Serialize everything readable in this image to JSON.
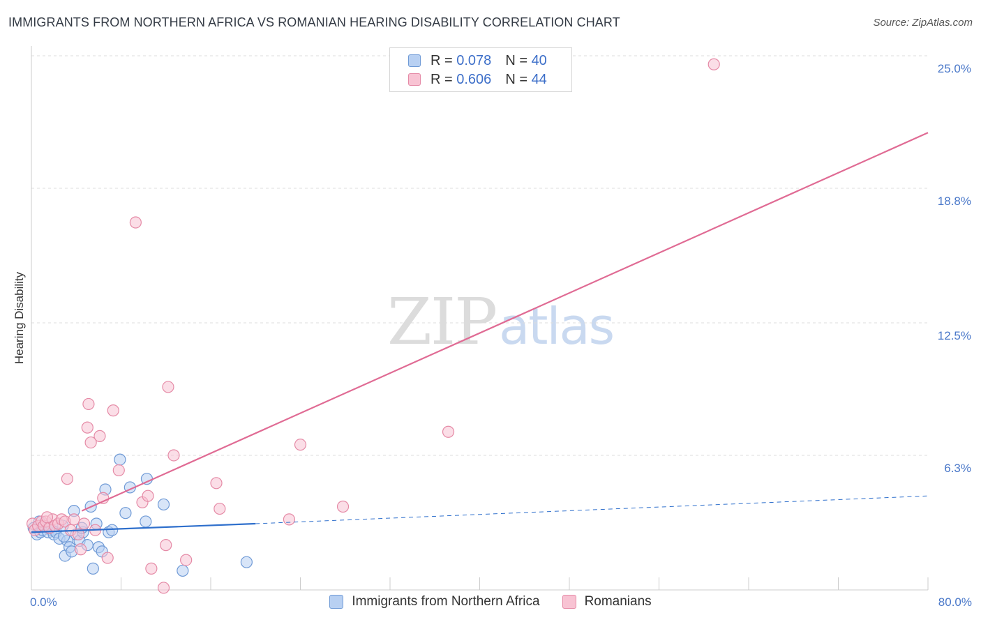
{
  "title": "IMMIGRANTS FROM NORTHERN AFRICA VS ROMANIAN HEARING DISABILITY CORRELATION CHART",
  "source": "Source: ZipAtlas.com",
  "watermark": {
    "zip": "ZIP",
    "atlas": "atlas"
  },
  "legend_top": [
    {
      "r_label": "R =",
      "r": "0.078",
      "n_label": "N =",
      "n": "40"
    },
    {
      "r_label": "R =",
      "r": "0.606",
      "n_label": "N =",
      "n": "44"
    }
  ],
  "legend_bottom": [
    "Immigrants from Northern Africa",
    "Romanians"
  ],
  "colors": {
    "blue_fill": "#b8d0f2",
    "blue_stroke": "#6f9ad6",
    "blue_line": "#2e6fcc",
    "pink_fill": "#f8c3d3",
    "pink_stroke": "#e58aa6",
    "pink_line": "#e06b94",
    "axis_text": "#4a78c9",
    "grid": "#dddddd"
  },
  "chart_data": {
    "type": "scatter",
    "xlabel": "",
    "ylabel": "Hearing Disability",
    "xlim": [
      0,
      80
    ],
    "ylim": [
      0,
      25
    ],
    "x_tick_labels": [
      {
        "value": 0,
        "label": "0.0%"
      },
      {
        "value": 80,
        "label": "80.0%"
      }
    ],
    "y_tick_labels": [
      {
        "value": 6.3,
        "label": "6.3%"
      },
      {
        "value": 12.5,
        "label": "12.5%"
      },
      {
        "value": 18.8,
        "label": "18.8%"
      },
      {
        "value": 25.0,
        "label": "25.0%"
      }
    ],
    "series": [
      {
        "name": "Immigrants from Northern Africa",
        "color": "blue",
        "points": [
          [
            0.2,
            2.9
          ],
          [
            0.5,
            2.6
          ],
          [
            0.8,
            2.7
          ],
          [
            1.0,
            2.8
          ],
          [
            1.2,
            3.0
          ],
          [
            1.5,
            2.7
          ],
          [
            1.8,
            2.8
          ],
          [
            2.0,
            2.6
          ],
          [
            2.2,
            2.7
          ],
          [
            2.5,
            2.4
          ],
          [
            2.8,
            3.0
          ],
          [
            3.0,
            1.6
          ],
          [
            3.2,
            2.3
          ],
          [
            3.4,
            2.0
          ],
          [
            3.6,
            1.8
          ],
          [
            3.8,
            3.7
          ],
          [
            4.0,
            2.6
          ],
          [
            4.3,
            2.3
          ],
          [
            4.6,
            2.7
          ],
          [
            5.0,
            2.1
          ],
          [
            5.3,
            3.9
          ],
          [
            5.5,
            1.0
          ],
          [
            5.8,
            3.1
          ],
          [
            6.0,
            2.0
          ],
          [
            6.3,
            1.8
          ],
          [
            6.6,
            4.7
          ],
          [
            6.9,
            2.7
          ],
          [
            7.2,
            2.8
          ],
          [
            7.9,
            6.1
          ],
          [
            8.4,
            3.6
          ],
          [
            8.8,
            4.8
          ],
          [
            10.2,
            3.2
          ],
          [
            10.3,
            5.2
          ],
          [
            11.8,
            4.0
          ],
          [
            13.5,
            0.9
          ],
          [
            19.2,
            1.3
          ],
          [
            0.7,
            3.2
          ],
          [
            1.6,
            2.9
          ],
          [
            2.9,
            2.5
          ],
          [
            4.5,
            2.9
          ]
        ],
        "trend": {
          "x0": 0,
          "y0": 2.7,
          "x1": 20,
          "y1": 3.1,
          "dashed_to_x": 80,
          "dashed_to_y": 4.4
        }
      },
      {
        "name": "Romanians",
        "color": "pink",
        "points": [
          [
            0.1,
            3.1
          ],
          [
            0.3,
            2.8
          ],
          [
            0.6,
            3.0
          ],
          [
            0.9,
            3.2
          ],
          [
            1.1,
            3.0
          ],
          [
            1.3,
            3.2
          ],
          [
            1.6,
            2.9
          ],
          [
            1.9,
            3.3
          ],
          [
            2.1,
            3.0
          ],
          [
            2.4,
            3.1
          ],
          [
            2.7,
            3.3
          ],
          [
            3.0,
            3.2
          ],
          [
            3.2,
            5.2
          ],
          [
            3.5,
            2.8
          ],
          [
            3.8,
            3.3
          ],
          [
            4.2,
            2.6
          ],
          [
            4.4,
            1.9
          ],
          [
            4.7,
            3.1
          ],
          [
            5.0,
            7.6
          ],
          [
            5.1,
            8.7
          ],
          [
            5.3,
            6.9
          ],
          [
            5.7,
            2.8
          ],
          [
            6.1,
            7.2
          ],
          [
            6.4,
            4.3
          ],
          [
            6.8,
            1.5
          ],
          [
            7.3,
            8.4
          ],
          [
            7.8,
            5.6
          ],
          [
            9.3,
            17.2
          ],
          [
            9.9,
            4.1
          ],
          [
            10.4,
            4.4
          ],
          [
            10.7,
            1.0
          ],
          [
            11.8,
            0.1
          ],
          [
            12.2,
            9.5
          ],
          [
            12.0,
            2.1
          ],
          [
            12.7,
            6.3
          ],
          [
            13.8,
            1.4
          ],
          [
            16.5,
            5.0
          ],
          [
            16.8,
            3.8
          ],
          [
            23.0,
            3.3
          ],
          [
            24.0,
            6.8
          ],
          [
            27.8,
            3.9
          ],
          [
            37.2,
            7.4
          ],
          [
            60.9,
            24.6
          ],
          [
            1.4,
            3.4
          ]
        ],
        "trend": {
          "x0": 4.5,
          "y0": 3.7,
          "x1": 80,
          "y1": 21.4
        }
      }
    ]
  }
}
